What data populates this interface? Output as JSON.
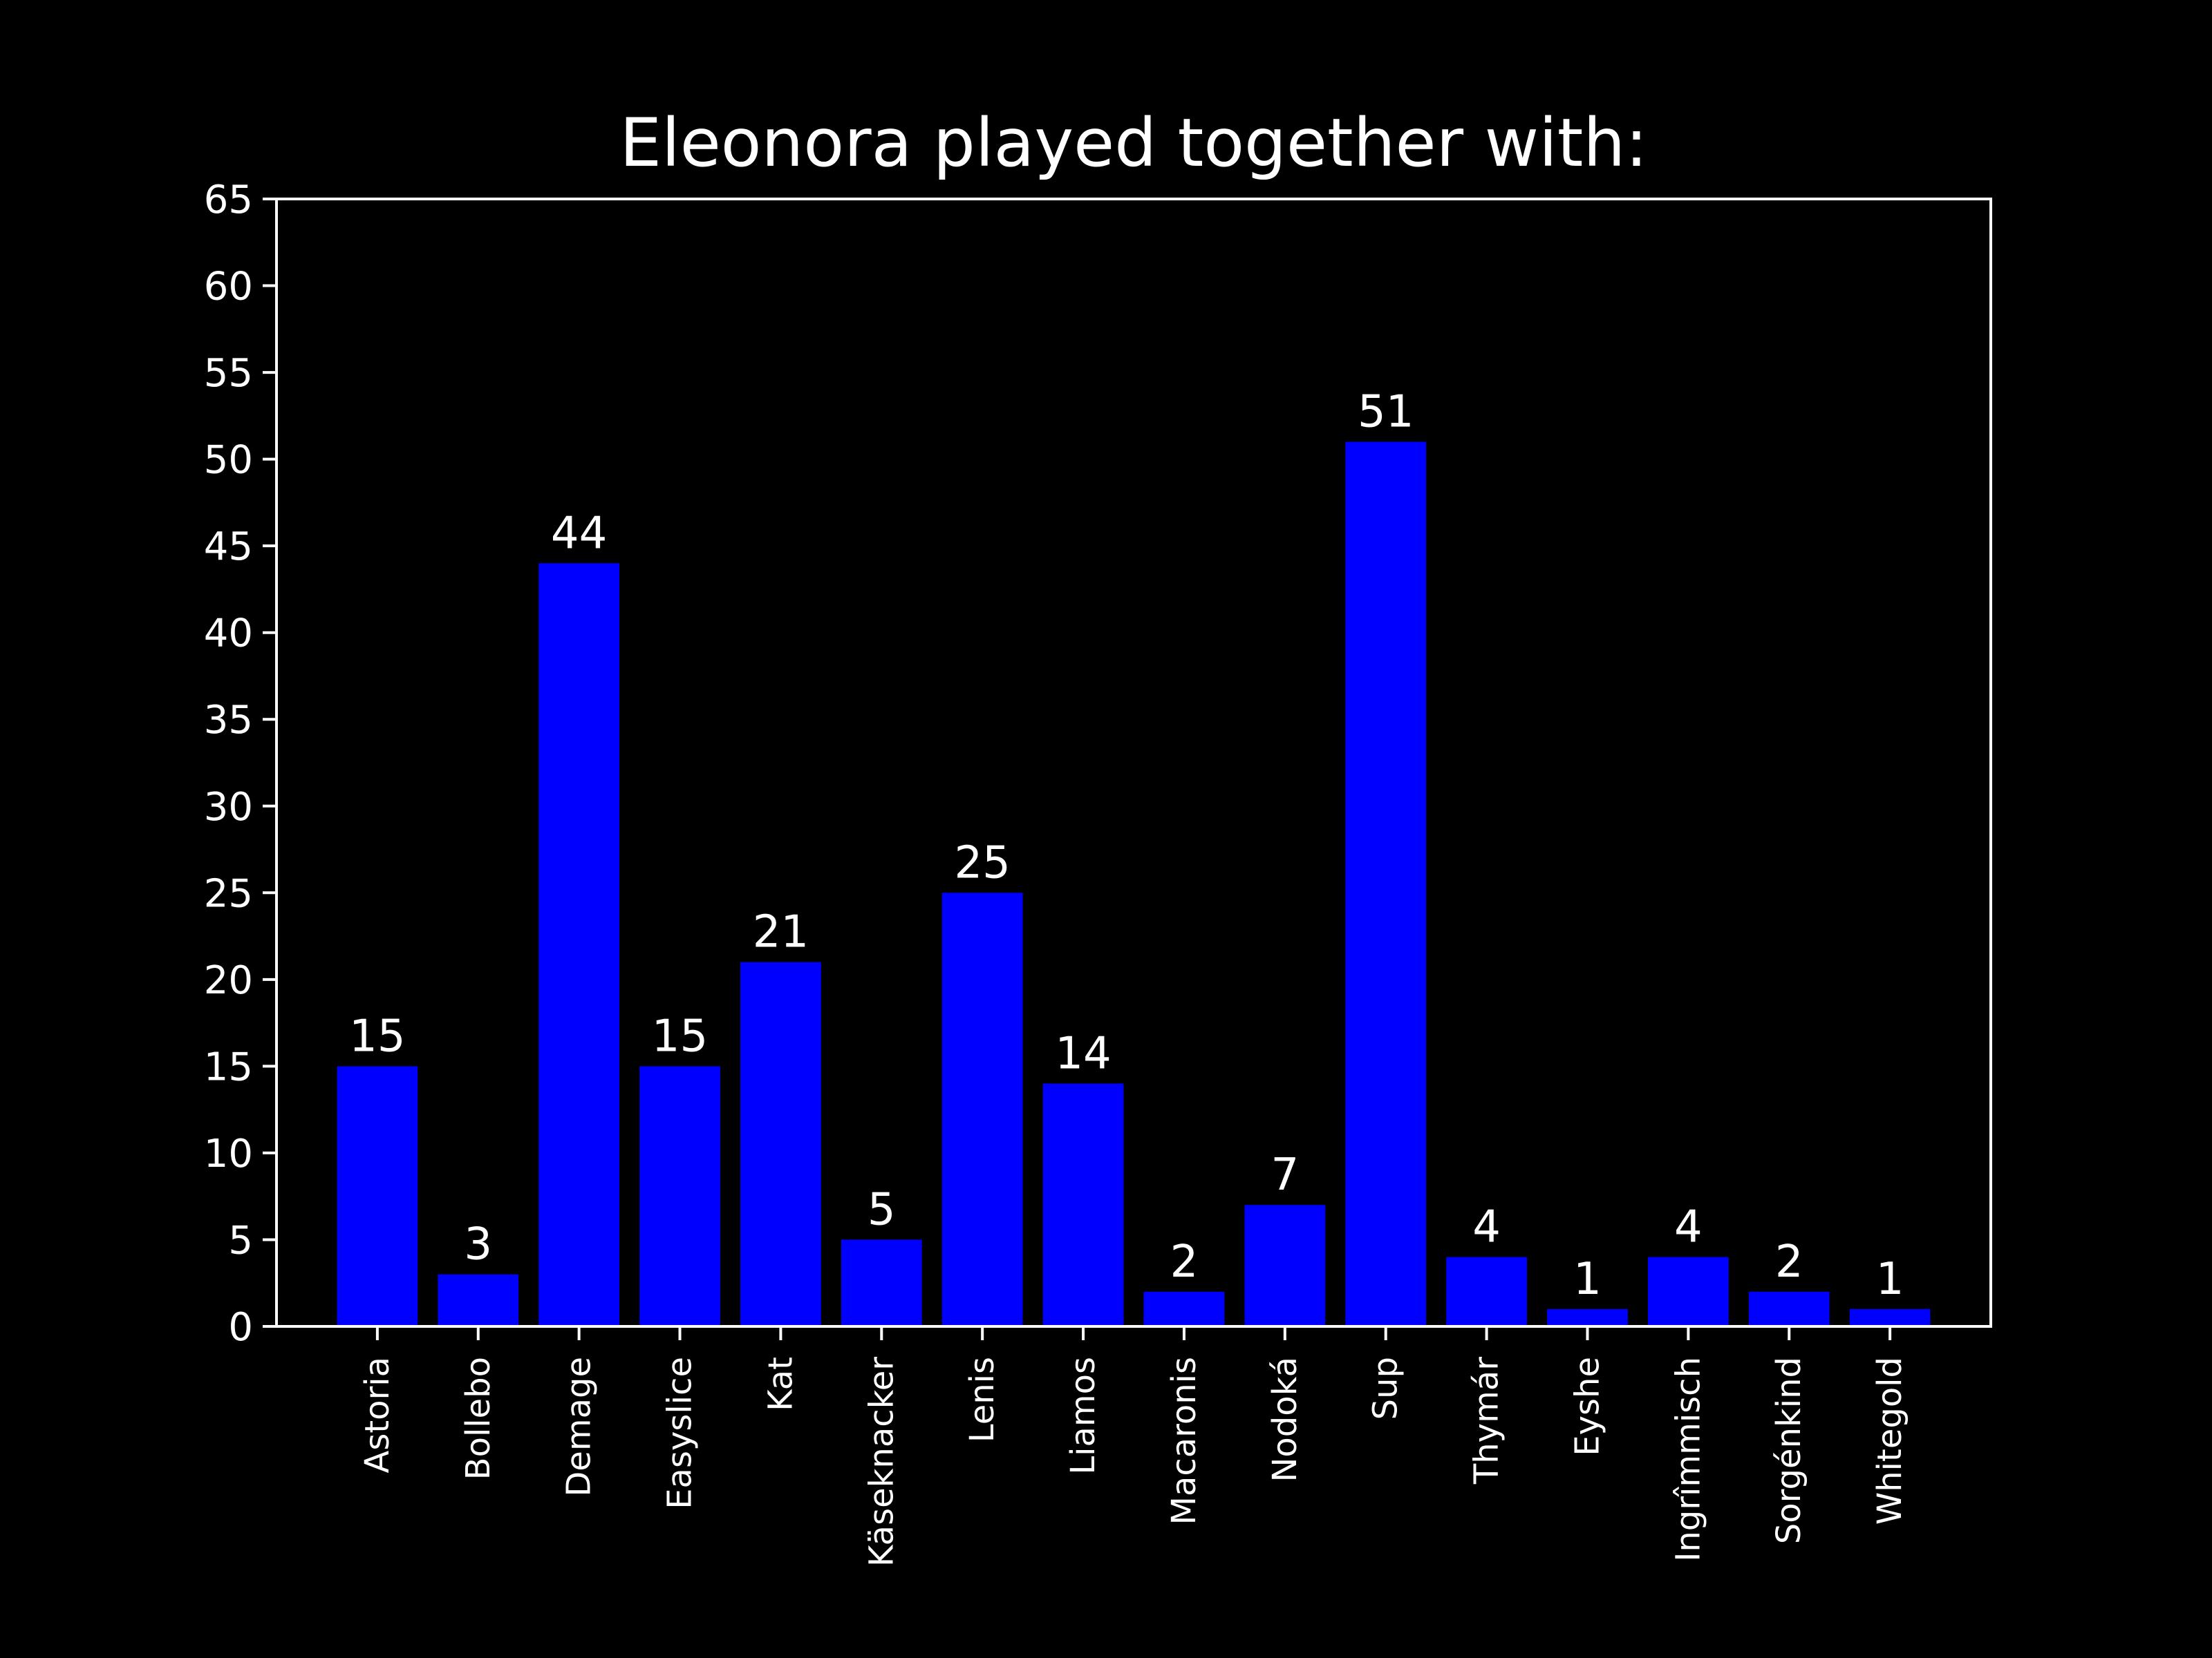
{
  "chart_data": {
    "type": "bar",
    "title": "Eleonora played together with:",
    "xlabel": "",
    "ylabel": "",
    "categories": [
      "Astoria",
      "Bollebo",
      "Demage",
      "Easyslice",
      "Kat",
      "Käseknacker",
      "Lenis",
      "Liamos",
      "Macaronis",
      "Nodoká",
      "Sup",
      "Thymár",
      "Eyshe",
      "Ingrîmmisch",
      "Sorgénkind",
      "Whitegold"
    ],
    "values": [
      15,
      3,
      44,
      15,
      21,
      5,
      25,
      14,
      2,
      7,
      51,
      4,
      1,
      4,
      2,
      1
    ],
    "ylim": [
      0,
      65
    ],
    "yticks": [
      0,
      5,
      10,
      15,
      20,
      25,
      30,
      35,
      40,
      45,
      50,
      55,
      60,
      65
    ],
    "grid": false,
    "legend": "none",
    "bar_color": "#0000ff",
    "background_color": "#000000",
    "text_color": "#ffffff"
  }
}
